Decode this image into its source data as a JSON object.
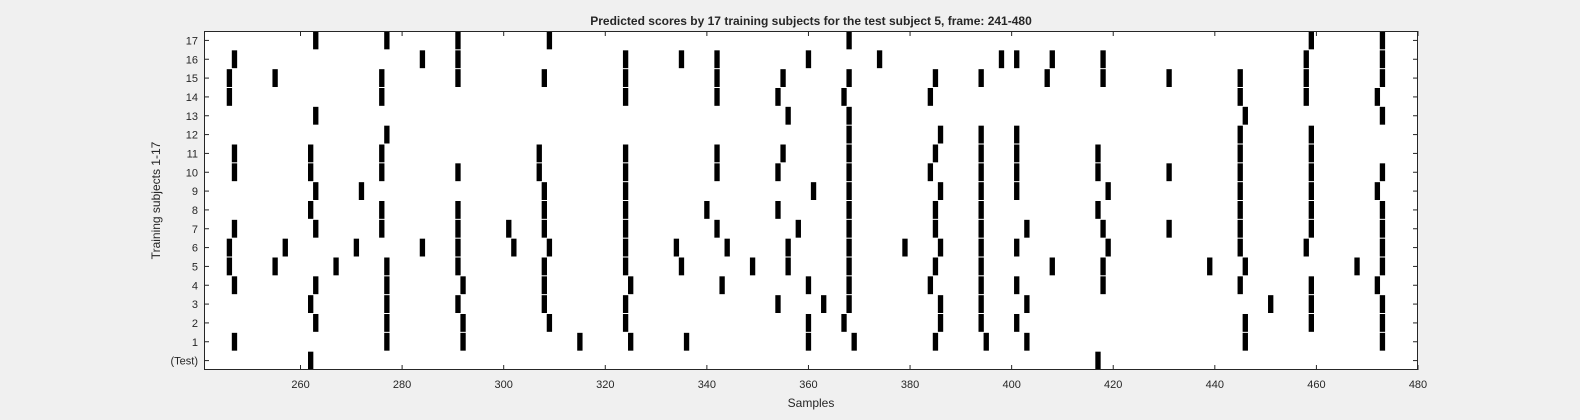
{
  "chart_data": {
    "type": "raster",
    "title": "Predicted scores by 17 training subjects for the test subject 5, frame: 241-480",
    "xlabel": "Samples",
    "ylabel": "Training subjects 1-17",
    "xlim": [
      241,
      480
    ],
    "x_ticks": [
      260,
      280,
      300,
      320,
      340,
      360,
      380,
      400,
      420,
      440,
      460,
      480
    ],
    "grid": false,
    "mark_color": "#000000",
    "rows": [
      {
        "label": "17",
        "x": [
          263,
          277,
          291,
          309,
          368,
          459,
          473
        ]
      },
      {
        "label": "16",
        "x": [
          247,
          284,
          291,
          324,
          335,
          342,
          360,
          374,
          398,
          401,
          408,
          418,
          458,
          473
        ]
      },
      {
        "label": "15",
        "x": [
          246,
          255,
          276,
          291,
          308,
          324,
          342,
          355,
          368,
          385,
          394,
          407,
          418,
          431,
          445,
          458,
          473
        ]
      },
      {
        "label": "14",
        "x": [
          246,
          276,
          324,
          342,
          354,
          367,
          384,
          445,
          458,
          472
        ]
      },
      {
        "label": "13",
        "x": [
          263,
          356,
          368,
          446,
          473
        ]
      },
      {
        "label": "12",
        "x": [
          277,
          368,
          386,
          394,
          401,
          445,
          459
        ]
      },
      {
        "label": "11",
        "x": [
          247,
          262,
          276,
          307,
          324,
          342,
          355,
          368,
          385,
          394,
          401,
          417,
          445,
          459
        ]
      },
      {
        "label": "10",
        "x": [
          247,
          262,
          276,
          291,
          307,
          324,
          342,
          354,
          368,
          384,
          394,
          401,
          417,
          431,
          445,
          459,
          473
        ]
      },
      {
        "label": "9",
        "x": [
          263,
          272,
          308,
          324,
          361,
          368,
          386,
          394,
          401,
          419,
          445,
          459,
          472
        ]
      },
      {
        "label": "8",
        "x": [
          262,
          276,
          291,
          308,
          324,
          340,
          354,
          368,
          385,
          394,
          417,
          445,
          459,
          473
        ]
      },
      {
        "label": "7",
        "x": [
          247,
          263,
          276,
          291,
          301,
          308,
          324,
          342,
          358,
          368,
          385,
          394,
          403,
          418,
          431,
          445,
          459,
          473
        ]
      },
      {
        "label": "6",
        "x": [
          246,
          257,
          271,
          284,
          291,
          302,
          309,
          324,
          334,
          344,
          356,
          368,
          379,
          386,
          394,
          401,
          419,
          445,
          458,
          473
        ]
      },
      {
        "label": "5",
        "x": [
          246,
          255,
          267,
          277,
          291,
          308,
          324,
          335,
          349,
          356,
          368,
          385,
          394,
          408,
          418,
          439,
          446,
          468,
          473
        ]
      },
      {
        "label": "4",
        "x": [
          247,
          263,
          277,
          292,
          308,
          325,
          343,
          360,
          368,
          384,
          394,
          401,
          418,
          445,
          459,
          472
        ]
      },
      {
        "label": "3",
        "x": [
          262,
          277,
          291,
          308,
          324,
          354,
          363,
          368,
          386,
          394,
          403,
          451,
          459,
          473
        ]
      },
      {
        "label": "2",
        "x": [
          263,
          277,
          292,
          309,
          324,
          360,
          367,
          386,
          394,
          401,
          446,
          459,
          473
        ]
      },
      {
        "label": "1",
        "x": [
          247,
          277,
          292,
          315,
          325,
          336,
          360,
          369,
          385,
          395,
          403,
          446,
          473
        ]
      },
      {
        "label": "(Test)",
        "x": [
          262,
          417
        ]
      }
    ]
  }
}
